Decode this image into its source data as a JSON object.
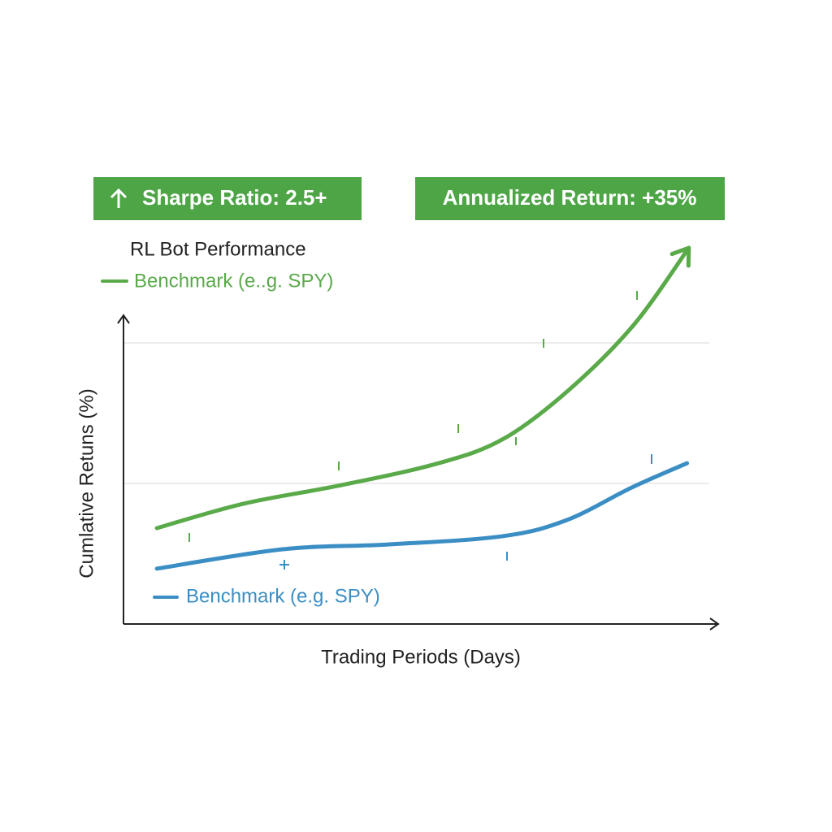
{
  "chart_data": {
    "type": "line",
    "title": "RL Bot Performance",
    "badges": [
      "Sharpe Ratio: 2.5+",
      "Annualized Return: +35%"
    ],
    "badge_color": "#4ea546",
    "x_label": "Trading Periods (Days)",
    "y_label": "Cumlative Retuns (%)",
    "xlim": [
      0,
      100
    ],
    "ylim": [
      0,
      140
    ],
    "gridlines": [
      50,
      100
    ],
    "grid": true,
    "series": [
      {
        "name": "Benchmark (e..g. SPY)",
        "color": "#5aaa4a",
        "x": [
          5.7,
          20.5,
          37.2,
          53.8,
          64.9,
          76,
          87.1,
          96.5
        ],
        "values": [
          34.1,
          42.8,
          49.4,
          57.2,
          65.9,
          83.2,
          106.4,
          133.8
        ]
      },
      {
        "name": "Benchmark (e.g. SPY)",
        "color": "#3b8ec4",
        "x": [
          5.7,
          27.2,
          45.2,
          64.6,
          75.7,
          86.8,
          96.2
        ],
        "values": [
          19.7,
          26.6,
          28.3,
          31.2,
          37.0,
          48.6,
          57.2
        ]
      }
    ]
  }
}
